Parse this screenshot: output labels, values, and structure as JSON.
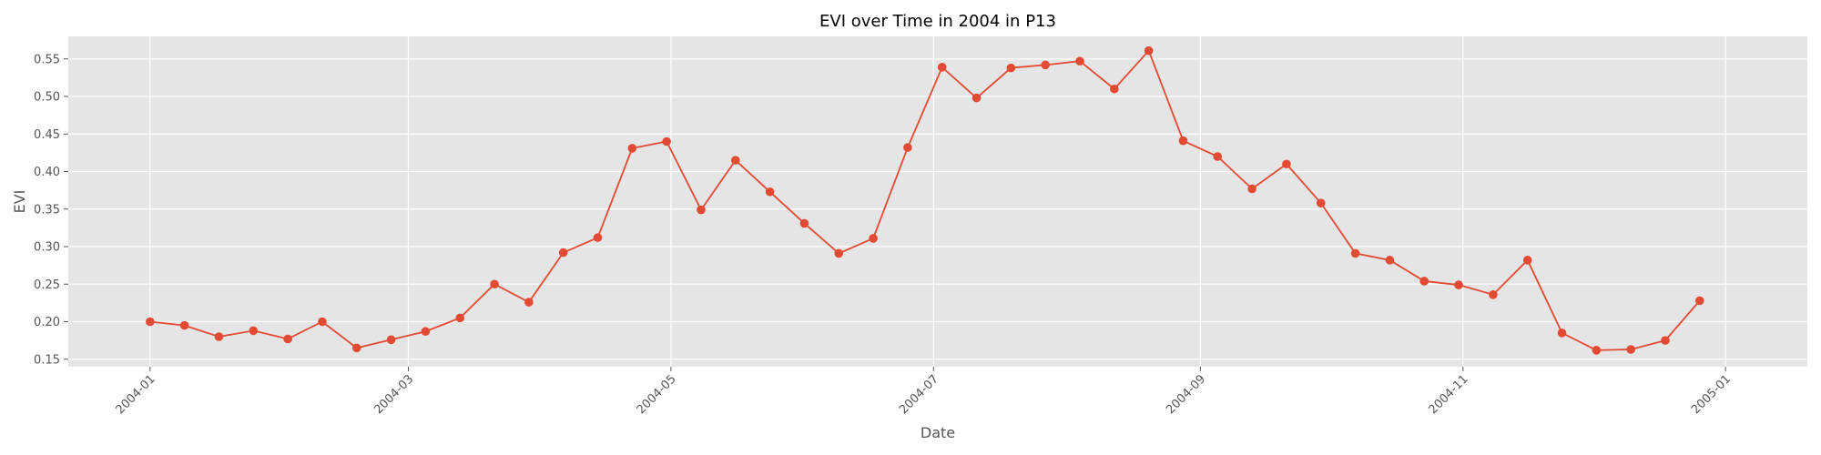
{
  "chart_data": {
    "type": "line",
    "title": "EVI over Time in 2004 in P13",
    "xlabel": "Date",
    "ylabel": "EVI",
    "x_ticks": [
      "2004-01",
      "2004-03",
      "2004-05",
      "2004-07",
      "2004-09",
      "2004-11",
      "2005-01"
    ],
    "y_ticks": [
      "0.15",
      "0.20",
      "0.25",
      "0.30",
      "0.35",
      "0.40",
      "0.45",
      "0.50",
      "0.55"
    ],
    "xlim": [
      "2003-12-13",
      "2005-01-20"
    ],
    "ylim": [
      0.14,
      0.58
    ],
    "grid": true,
    "series": [
      {
        "color": "#E24A33",
        "marker": "circle",
        "x": [
          "2004-01-01",
          "2004-01-09",
          "2004-01-17",
          "2004-01-25",
          "2004-02-02",
          "2004-02-10",
          "2004-02-18",
          "2004-02-26",
          "2004-03-05",
          "2004-03-13",
          "2004-03-21",
          "2004-03-29",
          "2004-04-06",
          "2004-04-14",
          "2004-04-22",
          "2004-04-30",
          "2004-05-08",
          "2004-05-16",
          "2004-05-24",
          "2004-06-01",
          "2004-06-09",
          "2004-06-17",
          "2004-06-25",
          "2004-07-03",
          "2004-07-11",
          "2004-07-19",
          "2004-07-27",
          "2004-08-04",
          "2004-08-12",
          "2004-08-20",
          "2004-08-28",
          "2004-09-05",
          "2004-09-13",
          "2004-09-21",
          "2004-09-29",
          "2004-10-07",
          "2004-10-15",
          "2004-10-23",
          "2004-10-31",
          "2004-11-08",
          "2004-11-16",
          "2004-11-24",
          "2004-12-02",
          "2004-12-10",
          "2004-12-18",
          "2004-12-26"
        ],
        "y": [
          0.2,
          0.195,
          0.18,
          0.188,
          0.177,
          0.2,
          0.165,
          0.176,
          0.187,
          0.205,
          0.25,
          0.226,
          0.292,
          0.312,
          0.431,
          0.44,
          0.349,
          0.415,
          0.373,
          0.331,
          0.291,
          0.311,
          0.432,
          0.539,
          0.498,
          0.538,
          0.542,
          0.547,
          0.51,
          0.561,
          0.441,
          0.42,
          0.377,
          0.41,
          0.358,
          0.291,
          0.282,
          0.254,
          0.249,
          0.236,
          0.282,
          0.185,
          0.162,
          0.163,
          0.175,
          0.228
        ]
      }
    ]
  }
}
